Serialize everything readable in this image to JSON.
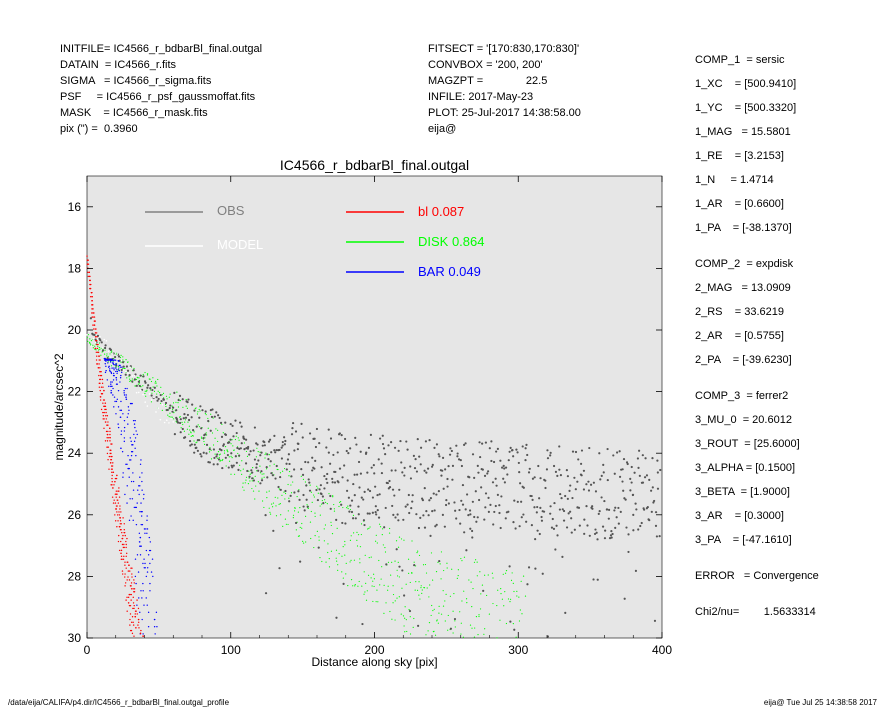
{
  "header": {
    "left": [
      "INITFILE= IC4566_r_bdbarBl_final.outgal",
      "DATAIN  = IC4566_r.fits",
      "SIGMA   = IC4566_r_sigma.fits",
      "PSF     = IC4566_r_psf_gaussmoffat.fits",
      "MASK    = IC4566_r_mask.fits",
      "pix (\") =  0.3960"
    ],
    "middle": [
      "FITSECT = '[170:830,170:830]'",
      "CONVBOX = '200, 200'",
      "MAGZPT =              22.5",
      "INFILE: 2017-May-23",
      "PLOT: 25-Jul-2017 14:38:58.00",
      "eija@"
    ]
  },
  "components": {
    "comp1": [
      "COMP_1  = sersic",
      "1_XC    = [500.9410]",
      "1_YC    = [500.3320]",
      "1_MAG   = 15.5801",
      "1_RE    = [3.2153]",
      "1_N     = 1.4714",
      "1_AR    = [0.6600]",
      "1_PA    = [-38.1370]"
    ],
    "comp2": [
      "COMP_2  = expdisk",
      "2_MAG   = 13.0909",
      "2_RS    = 33.6219",
      "2_AR    = [0.5755]",
      "2_PA    = [-39.6230]"
    ],
    "comp3": [
      "COMP_3  = ferrer2",
      "3_MU_0  = 20.6012",
      "3_ROUT  = [25.6000]",
      "3_ALPHA = [0.1500]",
      "3_BETA  = [1.9000]",
      "3_AR    = [0.3000]",
      "3_PA    = [-47.1610]"
    ],
    "error": "ERROR   = Convergence",
    "chi2": "Chi2/nu=        1.5633314"
  },
  "footer": {
    "left": "/data/eija/CALIFA/p4.dir/IC4566_r_bdbarBl_final.outgal_profile",
    "right": "eija@  Tue Jul 25 14:38:58 2017"
  },
  "chart_data": {
    "type": "scatter",
    "title": "IC4566_r_bdbarBl_final.outgal",
    "xlabel": "Distance along sky [pix]",
    "ylabel": "magnitude/arcsec^2",
    "xlim": [
      0,
      400
    ],
    "ylim": [
      30,
      15
    ],
    "y_inverted": true,
    "xticks": [
      0,
      100,
      200,
      300,
      400
    ],
    "yticks": [
      16,
      18,
      20,
      22,
      24,
      26,
      28,
      30
    ],
    "background": "#e6e6e6",
    "legend": [
      {
        "label": "OBS",
        "color": "#808080"
      },
      {
        "label": "MODEL",
        "color": "#ffffff"
      }
    ],
    "components_legend": [
      {
        "name": "bl",
        "fraction": "0.087",
        "color": "#ff0000"
      },
      {
        "name": "DISK",
        "fraction": "0.864",
        "color": "#00ff00"
      },
      {
        "name": "BAR",
        "fraction": "0.049",
        "color": "#0000ff"
      }
    ],
    "series": [
      {
        "name": "OBS",
        "color": "#555555",
        "points": [
          [
            2,
            19.8
          ],
          [
            5,
            20.1
          ],
          [
            10,
            20.5
          ],
          [
            20,
            21.0
          ],
          [
            30,
            21.4
          ],
          [
            40,
            21.8
          ],
          [
            50,
            22.2
          ],
          [
            60,
            22.6
          ],
          [
            70,
            23.0
          ],
          [
            80,
            23.3
          ],
          [
            100,
            23.8
          ],
          [
            120,
            24.1
          ],
          [
            140,
            24.4
          ],
          [
            160,
            24.6
          ],
          [
            180,
            24.8
          ],
          [
            200,
            24.9
          ],
          [
            220,
            25.0
          ],
          [
            240,
            25.0
          ],
          [
            260,
            25.1
          ],
          [
            280,
            25.1
          ],
          [
            300,
            25.2
          ],
          [
            320,
            25.2
          ],
          [
            340,
            25.3
          ],
          [
            360,
            25.3
          ],
          [
            380,
            25.3
          ],
          [
            398,
            25.4
          ]
        ]
      },
      {
        "name": "MODEL",
        "color": "#ffffff",
        "points": [
          [
            0,
            20.2
          ],
          [
            10,
            20.5
          ],
          [
            20,
            20.9
          ],
          [
            30,
            21.5
          ],
          [
            40,
            22.1
          ],
          [
            60,
            23.1
          ],
          [
            80,
            24.1
          ],
          [
            100,
            24.9
          ],
          [
            120,
            25.6
          ],
          [
            140,
            26.3
          ],
          [
            160,
            27.1
          ],
          [
            180,
            27.8
          ],
          [
            200,
            28.5
          ],
          [
            230,
            29.5
          ],
          [
            245,
            30.0
          ]
        ]
      },
      {
        "name": "DISK",
        "color": "#00ff00",
        "points": [
          [
            0,
            20.3
          ],
          [
            50,
            22.1
          ],
          [
            100,
            24.0
          ],
          [
            150,
            25.9
          ],
          [
            200,
            27.7
          ],
          [
            250,
            29.0
          ],
          [
            300,
            29.9
          ],
          [
            305,
            30.0
          ]
        ]
      },
      {
        "name": "bl",
        "color": "#ff0000",
        "points": [
          [
            0,
            17.6
          ],
          [
            5,
            19.8
          ],
          [
            10,
            21.9
          ],
          [
            15,
            23.6
          ],
          [
            20,
            25.3
          ],
          [
            25,
            26.9
          ],
          [
            30,
            28.5
          ],
          [
            35,
            30.0
          ]
        ]
      },
      {
        "name": "BAR",
        "color": "#0000ff",
        "points": [
          [
            0,
            20.9
          ],
          [
            10,
            21.0
          ],
          [
            15,
            21.4
          ],
          [
            20,
            22.4
          ],
          [
            25,
            24.0
          ],
          [
            30,
            26.0
          ],
          [
            35,
            28.0
          ],
          [
            38,
            30.0
          ]
        ]
      }
    ]
  }
}
